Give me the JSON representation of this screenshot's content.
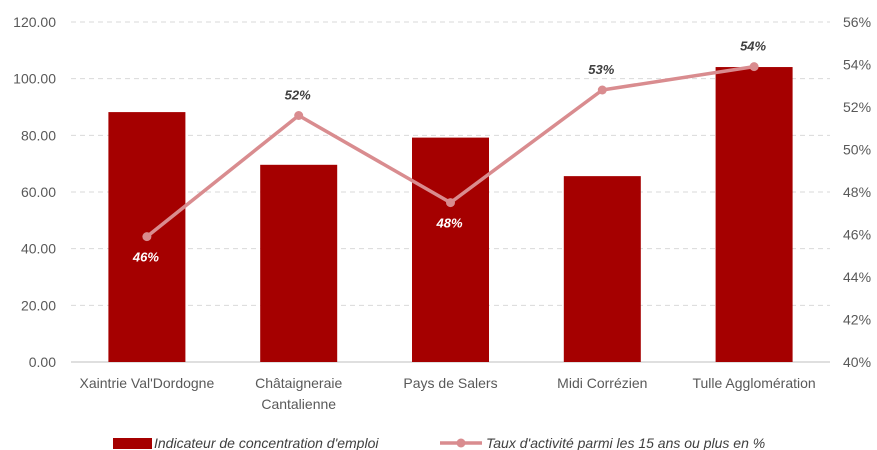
{
  "chart_data": {
    "type": "bar",
    "categories": [
      [
        "Xaintrie Val'Dordogne"
      ],
      [
        "Châtaigneraie",
        "Cantalienne"
      ],
      [
        "Pays de Salers"
      ],
      [
        "Midi Corrézien"
      ],
      [
        "Tulle Agglomération"
      ]
    ],
    "series": [
      {
        "name": "Indicateur de concentration d'emploi",
        "type": "bar",
        "axis": "left",
        "color": "#A50000",
        "values": [
          88.2,
          69.6,
          79.2,
          65.6,
          104.1
        ]
      },
      {
        "name": "Taux d'activité parmi les 15 ans ou plus en %",
        "type": "line",
        "axis": "right",
        "color": "#D98C8F",
        "values": [
          45.9,
          51.6,
          47.5,
          52.8,
          53.9
        ],
        "data_labels": [
          "46%",
          "52%",
          "48%",
          "53%",
          "54%"
        ]
      }
    ],
    "y_left": {
      "ylim": [
        0,
        120
      ],
      "ticks": [
        "0.00",
        "20.00",
        "40.00",
        "60.00",
        "80.00",
        "100.00",
        "120.00"
      ]
    },
    "y_right": {
      "ylim": [
        40,
        56
      ],
      "ticks": [
        "40%",
        "42%",
        "44%",
        "46%",
        "48%",
        "50%",
        "52%",
        "54%",
        "56%"
      ]
    },
    "grid": "horizontal-dashed",
    "legend_position": "bottom"
  }
}
